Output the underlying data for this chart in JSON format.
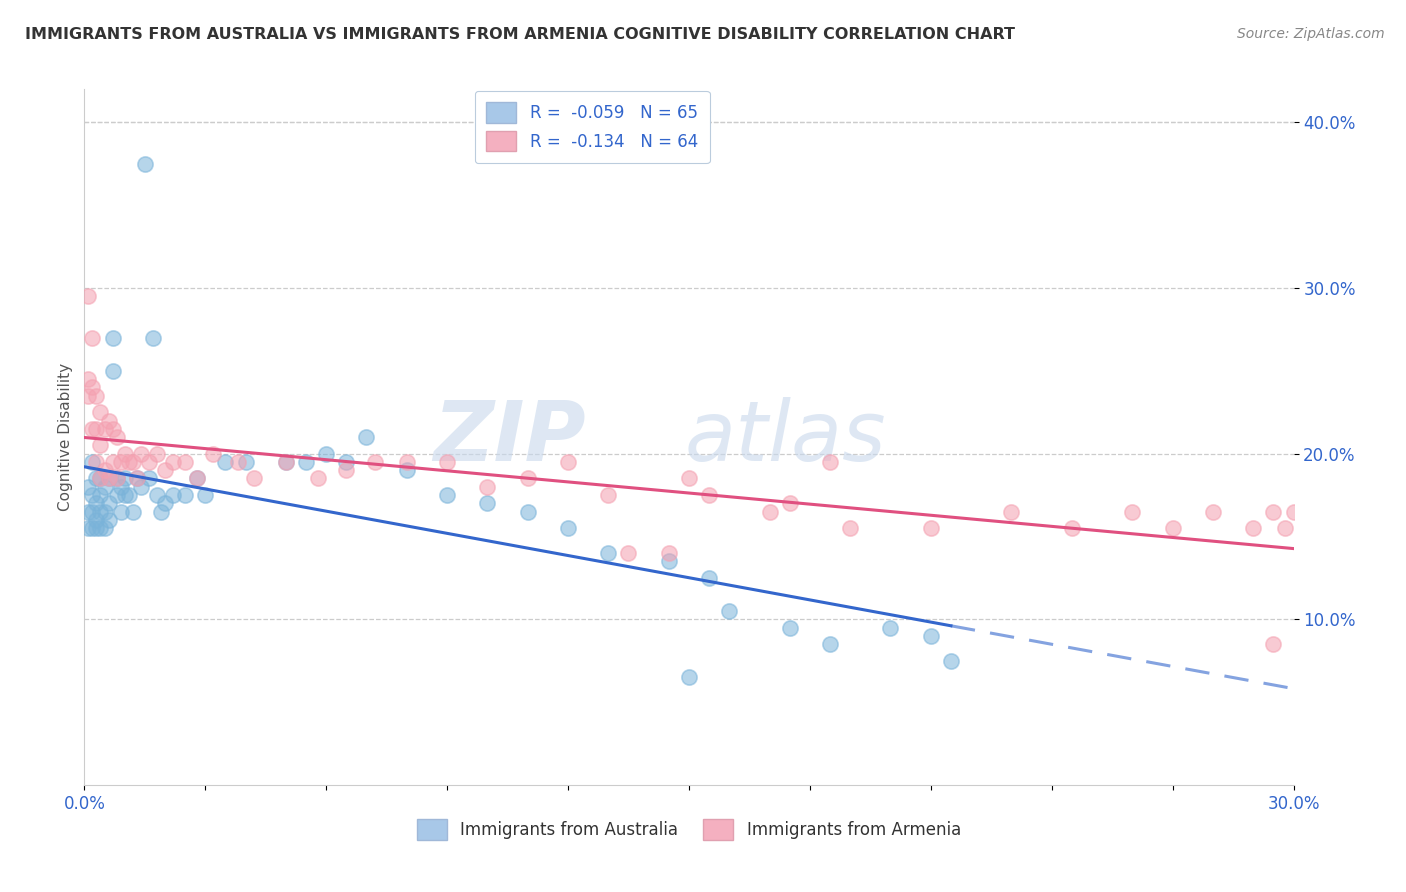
{
  "title": "IMMIGRANTS FROM AUSTRALIA VS IMMIGRANTS FROM ARMENIA COGNITIVE DISABILITY CORRELATION CHART",
  "source": "Source: ZipAtlas.com",
  "ylabel": "Cognitive Disability",
  "legend_labels_bottom": [
    "Immigrants from Australia",
    "Immigrants from Armenia"
  ],
  "australia_color": "#7ab3d9",
  "armenia_color": "#f4a0b0",
  "trendline_aus_color": "#3366cc",
  "trendline_arm_color": "#e05080",
  "xlim": [
    0.0,
    0.3
  ],
  "ylim": [
    0.0,
    0.42
  ],
  "aus_x": [
    0.001,
    0.001,
    0.001,
    0.002,
    0.002,
    0.002,
    0.002,
    0.003,
    0.003,
    0.003,
    0.003,
    0.004,
    0.004,
    0.004,
    0.004,
    0.005,
    0.005,
    0.005,
    0.006,
    0.006,
    0.006,
    0.007,
    0.007,
    0.008,
    0.008,
    0.009,
    0.009,
    0.01,
    0.01,
    0.011,
    0.012,
    0.013,
    0.014,
    0.015,
    0.016,
    0.017,
    0.018,
    0.019,
    0.02,
    0.022,
    0.025,
    0.028,
    0.03,
    0.035,
    0.04,
    0.05,
    0.055,
    0.06,
    0.065,
    0.07,
    0.08,
    0.09,
    0.1,
    0.11,
    0.12,
    0.13,
    0.145,
    0.155,
    0.16,
    0.175,
    0.185,
    0.2,
    0.21,
    0.215,
    0.15
  ],
  "aus_y": [
    0.18,
    0.165,
    0.155,
    0.195,
    0.175,
    0.165,
    0.155,
    0.185,
    0.17,
    0.16,
    0.155,
    0.185,
    0.175,
    0.165,
    0.155,
    0.18,
    0.165,
    0.155,
    0.185,
    0.17,
    0.16,
    0.27,
    0.25,
    0.185,
    0.175,
    0.18,
    0.165,
    0.185,
    0.175,
    0.175,
    0.165,
    0.185,
    0.18,
    0.375,
    0.185,
    0.27,
    0.175,
    0.165,
    0.17,
    0.175,
    0.175,
    0.185,
    0.175,
    0.195,
    0.195,
    0.195,
    0.195,
    0.2,
    0.195,
    0.21,
    0.19,
    0.175,
    0.17,
    0.165,
    0.155,
    0.14,
    0.135,
    0.125,
    0.105,
    0.095,
    0.085,
    0.095,
    0.09,
    0.075,
    0.065
  ],
  "arm_x": [
    0.001,
    0.001,
    0.001,
    0.002,
    0.002,
    0.002,
    0.003,
    0.003,
    0.003,
    0.004,
    0.004,
    0.004,
    0.005,
    0.005,
    0.006,
    0.006,
    0.007,
    0.007,
    0.008,
    0.008,
    0.009,
    0.01,
    0.011,
    0.012,
    0.013,
    0.014,
    0.016,
    0.018,
    0.02,
    0.022,
    0.025,
    0.028,
    0.032,
    0.038,
    0.042,
    0.05,
    0.058,
    0.065,
    0.072,
    0.08,
    0.09,
    0.1,
    0.11,
    0.12,
    0.13,
    0.15,
    0.17,
    0.19,
    0.21,
    0.23,
    0.245,
    0.26,
    0.27,
    0.28,
    0.29,
    0.295,
    0.298,
    0.3,
    0.175,
    0.155,
    0.185,
    0.145,
    0.135,
    0.295
  ],
  "arm_y": [
    0.295,
    0.245,
    0.235,
    0.27,
    0.24,
    0.215,
    0.235,
    0.215,
    0.195,
    0.225,
    0.205,
    0.185,
    0.215,
    0.19,
    0.22,
    0.185,
    0.215,
    0.195,
    0.21,
    0.185,
    0.195,
    0.2,
    0.195,
    0.195,
    0.185,
    0.2,
    0.195,
    0.2,
    0.19,
    0.195,
    0.195,
    0.185,
    0.2,
    0.195,
    0.185,
    0.195,
    0.185,
    0.19,
    0.195,
    0.195,
    0.195,
    0.18,
    0.185,
    0.195,
    0.175,
    0.185,
    0.165,
    0.155,
    0.155,
    0.165,
    0.155,
    0.165,
    0.155,
    0.165,
    0.155,
    0.165,
    0.155,
    0.165,
    0.17,
    0.175,
    0.195,
    0.14,
    0.14,
    0.085
  ]
}
